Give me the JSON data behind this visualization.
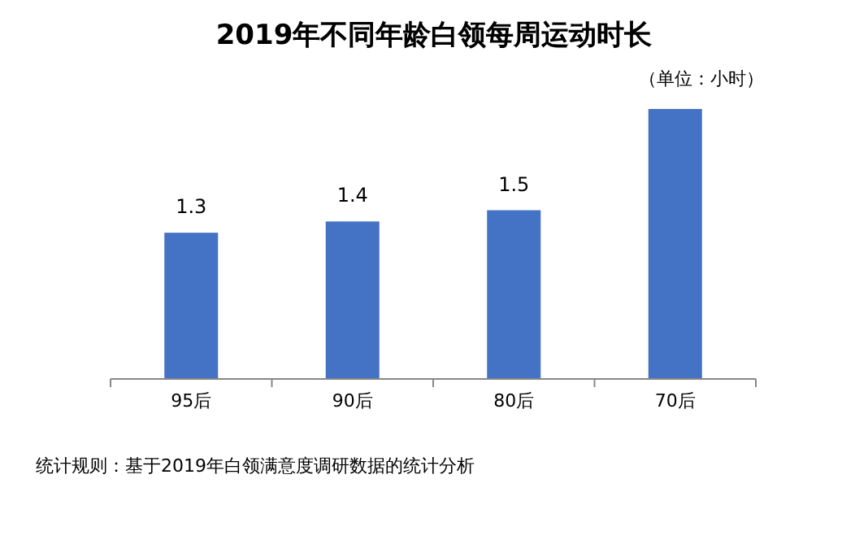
{
  "chart_data": {
    "type": "bar",
    "title": "2019年不同年龄白领每周运动时长",
    "categories": [
      "95后",
      "90后",
      "80后",
      "70后"
    ],
    "values": [
      1.3,
      1.4,
      1.5,
      2.4
    ],
    "value_labels": [
      "1.3",
      "1.4",
      "1.5",
      null
    ],
    "color": "#4472c4",
    "annotations": [
      "（单位：小时）",
      "统计规则：基于2019年白领满意度调研数据的统计分析"
    ]
  }
}
